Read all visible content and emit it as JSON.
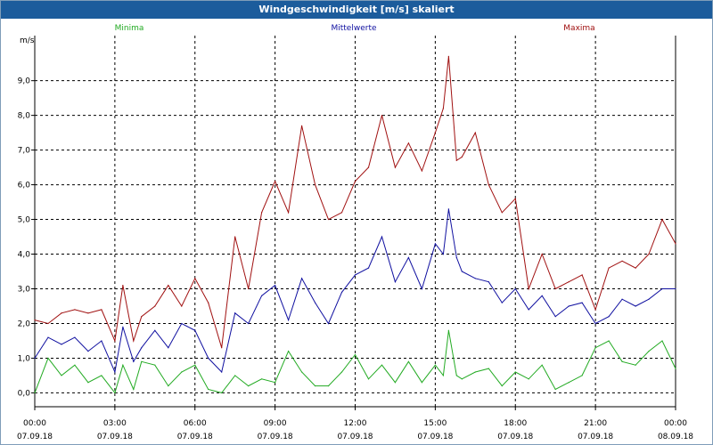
{
  "window": {
    "title": "Windgeschwindigkeit [m/s] skaliert"
  },
  "colors": {
    "min": "#22aa22",
    "mean": "#1010a0",
    "max": "#a01010",
    "title_bar": "#1c5c9c"
  },
  "chart_data": {
    "type": "line",
    "title": "Windgeschwindigkeit [m/s] skaliert",
    "ylabel": "m/s",
    "ylim": [
      -0.4,
      10.3
    ],
    "xlim": [
      0,
      24
    ],
    "grid": true,
    "legend_position": "top",
    "y_ticks": [
      0,
      1,
      2,
      3,
      4,
      5,
      6,
      7,
      8,
      9
    ],
    "y_tick_labels": [
      "0,0",
      "1,0",
      "2,0",
      "3,0",
      "4,0",
      "5,0",
      "6,0",
      "7,0",
      "8,0",
      "9,0"
    ],
    "x_ticks": [
      0,
      3,
      6,
      9,
      12,
      15,
      18,
      21,
      24
    ],
    "x_tick_labels": [
      [
        "00:00",
        "07.09.18"
      ],
      [
        "03:00",
        "07.09.18"
      ],
      [
        "06:00",
        "07.09.18"
      ],
      [
        "09:00",
        "07.09.18"
      ],
      [
        "12:00",
        "07.09.18"
      ],
      [
        "15:00",
        "07.09.18"
      ],
      [
        "18:00",
        "07.09.18"
      ],
      [
        "21:00",
        "07.09.18"
      ],
      [
        "00:00",
        "08.09.18"
      ]
    ],
    "series": [
      {
        "name": "Minima",
        "color": "#22aa22",
        "x": [
          0,
          0.5,
          1,
          1.5,
          2,
          2.5,
          3,
          3.3,
          3.7,
          4,
          4.5,
          5,
          5.5,
          6,
          6.5,
          7,
          7.5,
          8,
          8.5,
          9,
          9.5,
          10,
          10.5,
          11,
          11.5,
          12,
          12.5,
          13,
          13.5,
          14,
          14.5,
          15,
          15.3,
          15.5,
          15.8,
          16,
          16.5,
          17,
          17.5,
          18,
          18.5,
          19,
          19.5,
          20,
          20.5,
          21,
          21.5,
          22,
          22.5,
          23,
          23.5,
          24
        ],
        "values": [
          0,
          1.0,
          0.5,
          0.8,
          0.3,
          0.5,
          0,
          0.8,
          0.1,
          0.9,
          0.8,
          0.2,
          0.6,
          0.8,
          0.1,
          0,
          0.5,
          0.2,
          0.4,
          0.3,
          1.2,
          0.6,
          0.2,
          0.2,
          0.6,
          1.1,
          0.4,
          0.8,
          0.3,
          0.9,
          0.3,
          0.8,
          0.5,
          1.8,
          0.5,
          0.4,
          0.6,
          0.7,
          0.2,
          0.6,
          0.4,
          0.8,
          0.1,
          0.3,
          0.5,
          1.3,
          1.5,
          0.9,
          0.8,
          1.2,
          1.5,
          0.7
        ]
      },
      {
        "name": "Mittelwerte",
        "color": "#1010a0",
        "x": [
          0,
          0.5,
          1,
          1.5,
          2,
          2.5,
          3,
          3.3,
          3.7,
          4,
          4.5,
          5,
          5.5,
          6,
          6.5,
          7,
          7.5,
          8,
          8.5,
          9,
          9.5,
          10,
          10.5,
          11,
          11.5,
          12,
          12.5,
          13,
          13.5,
          14,
          14.5,
          15,
          15.3,
          15.5,
          15.8,
          16,
          16.5,
          17,
          17.5,
          18,
          18.5,
          19,
          19.5,
          20,
          20.5,
          21,
          21.5,
          22,
          22.5,
          23,
          23.5,
          24
        ],
        "values": [
          1.0,
          1.6,
          1.4,
          1.6,
          1.2,
          1.5,
          0.6,
          1.9,
          0.9,
          1.3,
          1.8,
          1.3,
          2.0,
          1.8,
          1.0,
          0.6,
          2.3,
          2.0,
          2.8,
          3.1,
          2.1,
          3.3,
          2.6,
          2.0,
          2.9,
          3.4,
          3.6,
          4.5,
          3.2,
          3.9,
          3.0,
          4.3,
          4.0,
          5.3,
          3.9,
          3.5,
          3.3,
          3.2,
          2.6,
          3.0,
          2.4,
          2.8,
          2.2,
          2.5,
          2.6,
          2.0,
          2.2,
          2.7,
          2.5,
          2.7,
          3.0,
          3.0
        ]
      },
      {
        "name": "Maxima",
        "color": "#a01010",
        "x": [
          0,
          0.5,
          1,
          1.5,
          2,
          2.5,
          3,
          3.3,
          3.7,
          4,
          4.5,
          5,
          5.5,
          6,
          6.5,
          7,
          7.5,
          8,
          8.5,
          9,
          9.5,
          10,
          10.5,
          11,
          11.5,
          12,
          12.5,
          13,
          13.5,
          14,
          14.5,
          15,
          15.3,
          15.5,
          15.8,
          16,
          16.5,
          17,
          17.5,
          18,
          18.5,
          19,
          19.5,
          20,
          20.5,
          21,
          21.5,
          22,
          22.5,
          23,
          23.5,
          24
        ],
        "values": [
          2.1,
          2.0,
          2.3,
          2.4,
          2.3,
          2.4,
          1.5,
          3.1,
          1.5,
          2.2,
          2.5,
          3.1,
          2.5,
          3.3,
          2.6,
          1.3,
          4.5,
          3.0,
          5.2,
          6.1,
          5.2,
          7.7,
          6.0,
          5.0,
          5.2,
          6.1,
          6.5,
          8.0,
          6.5,
          7.2,
          6.4,
          7.5,
          8.2,
          9.7,
          6.7,
          6.8,
          7.5,
          6.0,
          5.2,
          5.6,
          3.0,
          4.0,
          3.0,
          3.2,
          3.4,
          2.4,
          3.6,
          3.8,
          3.6,
          4.0,
          5.0,
          4.3
        ]
      }
    ]
  }
}
